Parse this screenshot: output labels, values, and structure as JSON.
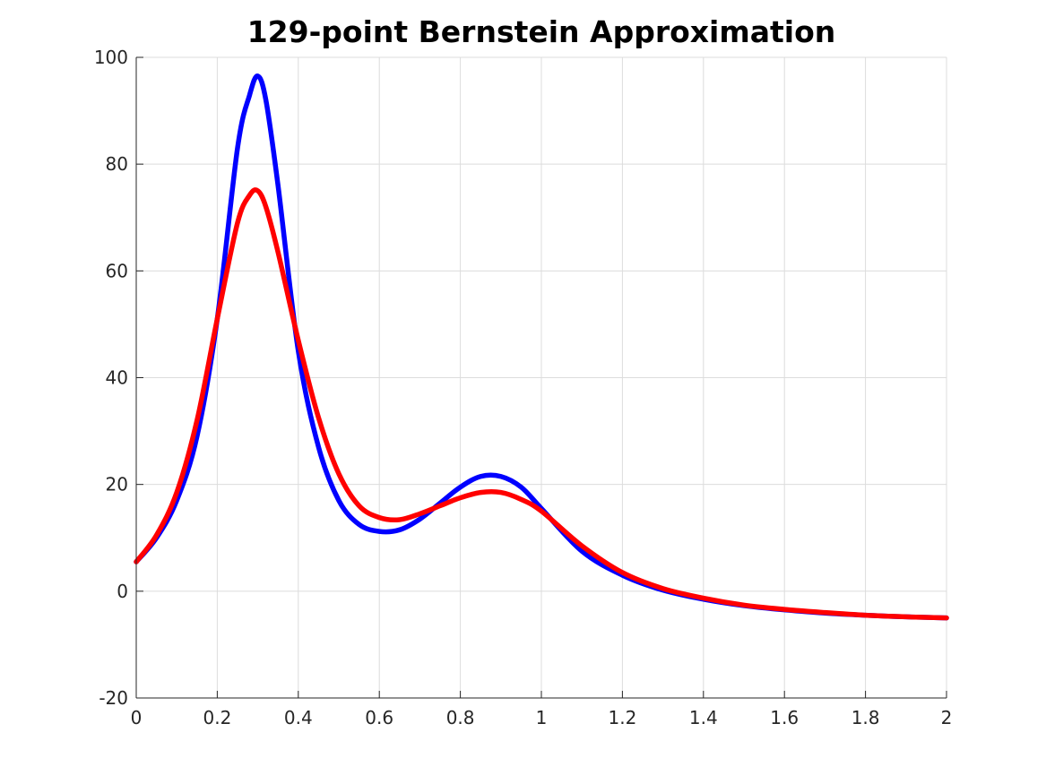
{
  "chart_data": {
    "type": "line",
    "title": "129-point Bernstein Approximation",
    "xlabel": "",
    "ylabel": "",
    "xlim": [
      0,
      2
    ],
    "ylim": [
      -20,
      100
    ],
    "grid": true,
    "legend": "none",
    "x_ticks": [
      "0",
      "0.2",
      "0.4",
      "0.6",
      "0.8",
      "1",
      "1.2",
      "1.4",
      "1.6",
      "1.8",
      "2"
    ],
    "y_ticks": [
      "-20",
      "0",
      "20",
      "40",
      "60",
      "80",
      "100"
    ],
    "series": [
      {
        "color": "#0000ff",
        "x": [
          0,
          0.05,
          0.1,
          0.15,
          0.2,
          0.25,
          0.28,
          0.3,
          0.32,
          0.35,
          0.4,
          0.45,
          0.5,
          0.55,
          0.6,
          0.65,
          0.7,
          0.75,
          0.8,
          0.85,
          0.9,
          0.95,
          1.0,
          1.1,
          1.2,
          1.3,
          1.4,
          1.5,
          1.6,
          1.7,
          1.8,
          1.9,
          2.0
        ],
        "y": [
          5.5,
          10,
          17,
          29,
          51,
          83,
          93,
          96.5,
          92,
          76,
          45,
          27,
          17,
          12.5,
          11.2,
          11.5,
          13.5,
          16.5,
          19.5,
          21.5,
          21.5,
          19.5,
          15.5,
          7.5,
          3,
          0.2,
          -1.5,
          -2.7,
          -3.5,
          -4.1,
          -4.5,
          -4.8,
          -5
        ]
      },
      {
        "color": "#ff0000",
        "x": [
          0,
          0.05,
          0.1,
          0.15,
          0.2,
          0.25,
          0.28,
          0.3,
          0.32,
          0.35,
          0.4,
          0.45,
          0.5,
          0.55,
          0.6,
          0.65,
          0.7,
          0.75,
          0.8,
          0.85,
          0.9,
          0.95,
          1.0,
          1.1,
          1.2,
          1.3,
          1.4,
          1.5,
          1.6,
          1.7,
          1.8,
          1.9,
          2.0
        ],
        "y": [
          5.5,
          10.5,
          18.5,
          32,
          51,
          69,
          74.2,
          75,
          72,
          63.5,
          47,
          32.5,
          22,
          16,
          13.8,
          13.4,
          14.5,
          16,
          17.5,
          18.5,
          18.5,
          17.2,
          15,
          8.5,
          3.5,
          0.5,
          -1.3,
          -2.6,
          -3.4,
          -4.0,
          -4.5,
          -4.8,
          -5
        ]
      }
    ]
  }
}
